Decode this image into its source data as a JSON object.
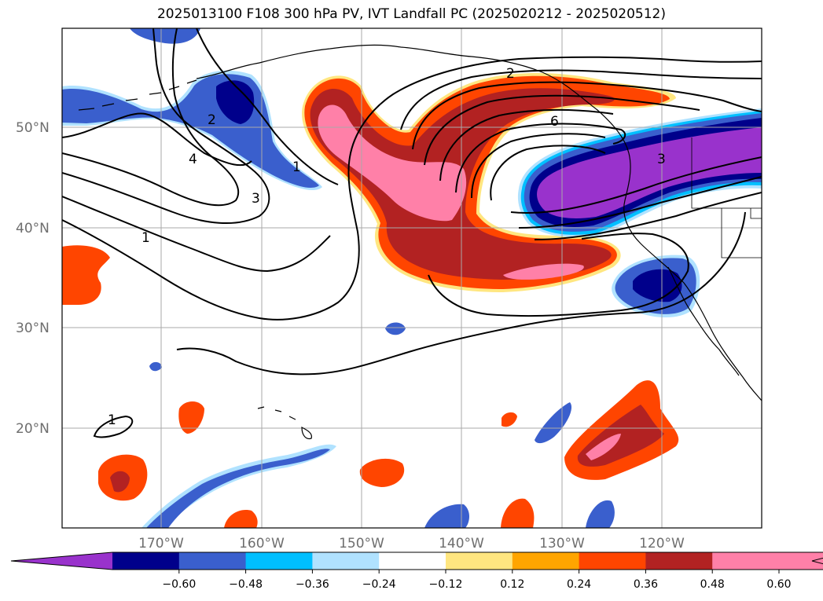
{
  "title": "2025013100 F108 300 hPa PV, IVT Landfall PC (2025020212 - 2025020512)",
  "lat_labels": [
    "50°N",
    "40°N",
    "30°N",
    "20°N"
  ],
  "lon_labels": [
    "170°W",
    "160°W",
    "150°W",
    "140°W",
    "130°W",
    "120°W"
  ],
  "contour_labels": [
    "2",
    "2",
    "4",
    "1",
    "3",
    "1",
    "6",
    "3",
    "1"
  ],
  "colorbar": {
    "ticks": [
      "−0.60",
      "−0.48",
      "−0.36",
      "−0.24",
      "−0.12",
      "0.12",
      "0.24",
      "0.36",
      "0.48",
      "0.60"
    ],
    "colors": [
      "#9932cc",
      "#00008b",
      "#3a5fcd",
      "#00bfff",
      "#b0e2ff",
      "#ffffff",
      "#ffe680",
      "#ffa500",
      "#ff4500",
      "#b22222",
      "#ff80a8",
      "#ff80a8"
    ]
  },
  "colors": {
    "neg_strong": "#9932cc",
    "neg_dark": "#00008b",
    "neg_mid": "#3a5fcd",
    "neg_light": "#00bfff",
    "neg_pale": "#b0e2ff",
    "pos_yellow": "#ffe680",
    "pos_orange": "#ffa500",
    "pos_red": "#ff4500",
    "pos_dark": "#b22222",
    "pos_pink": "#ff80a8"
  }
}
